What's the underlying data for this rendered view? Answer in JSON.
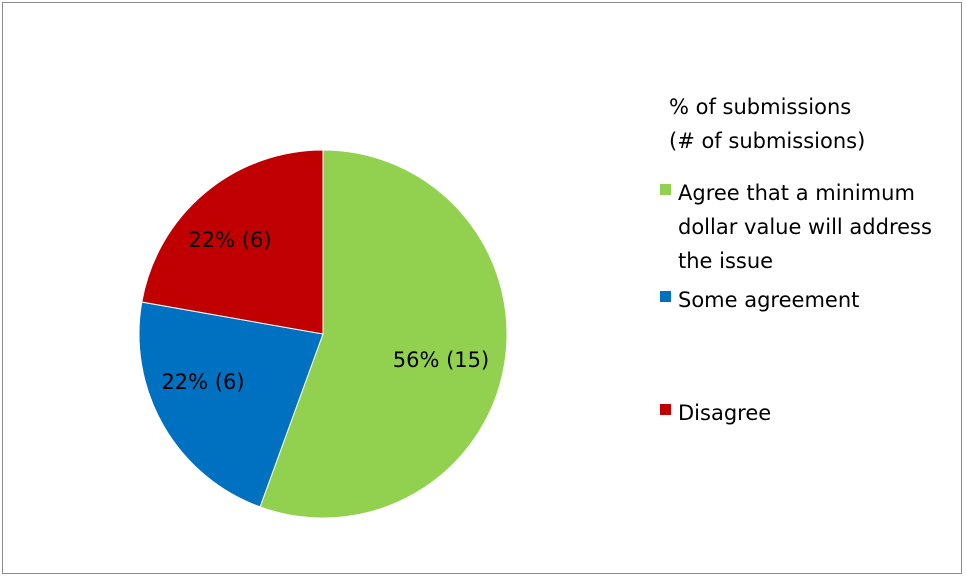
{
  "chart_data": {
    "type": "pie",
    "legend_title_lines": [
      "% of submissions",
      "(# of submissions)"
    ],
    "legend_position": "right",
    "slices": [
      {
        "name": "Agree that a minimum dollar value will address the issue",
        "name_lines": [
          "Agree that a minimum",
          "dollar value will address",
          "the issue"
        ],
        "value": 15,
        "percent": 56,
        "label": "56% (15)",
        "color": "#92d050"
      },
      {
        "name": "Some agreement",
        "name_lines": [
          "Some agreement"
        ],
        "value": 6,
        "percent": 22,
        "label": "22% (6)",
        "color": "#0070c0"
      },
      {
        "name": "Disagree",
        "name_lines": [
          "Disagree"
        ],
        "value": 6,
        "percent": 22,
        "label": "22% (6)",
        "color": "#c00000"
      }
    ]
  }
}
